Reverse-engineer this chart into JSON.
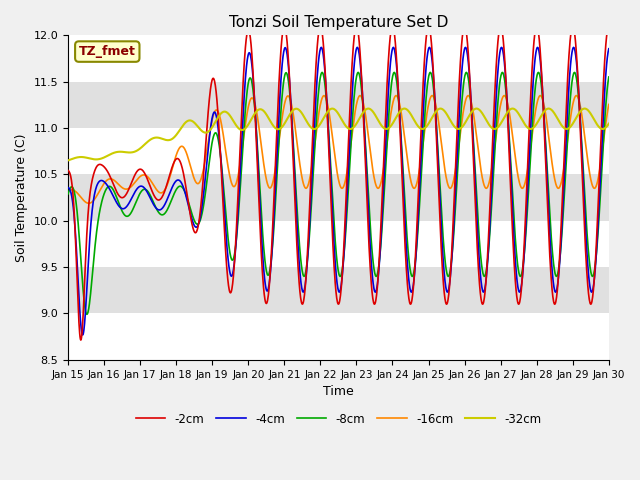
{
  "title": "Tonzi Soil Temperature Set D",
  "xlabel": "Time",
  "ylabel": "Soil Temperature (C)",
  "ylim": [
    8.5,
    12.0
  ],
  "xlim_days": [
    0,
    15
  ],
  "annotation": "TZ_fmet",
  "tick_labels": [
    "Jan 15",
    "Jan 16",
    "Jan 17",
    "Jan 18",
    "Jan 19",
    "Jan 20",
    "Jan 21",
    "Jan 22",
    "Jan 23",
    "Jan 24",
    "Jan 25",
    "Jan 26",
    "Jan 27",
    "Jan 28",
    "Jan 29",
    "Jan 30"
  ],
  "legend_entries": [
    "-2cm",
    "-4cm",
    "-8cm",
    "-16cm",
    "-32cm"
  ],
  "line_colors": [
    "#dd0000",
    "#0000dd",
    "#00aa00",
    "#ff8800",
    "#cccc00"
  ],
  "background_color": "#f0f0f0",
  "plot_bg_color": "#e0e0e0",
  "yticks": [
    8.5,
    9.0,
    9.5,
    10.0,
    10.5,
    11.0,
    11.5,
    12.0
  ]
}
